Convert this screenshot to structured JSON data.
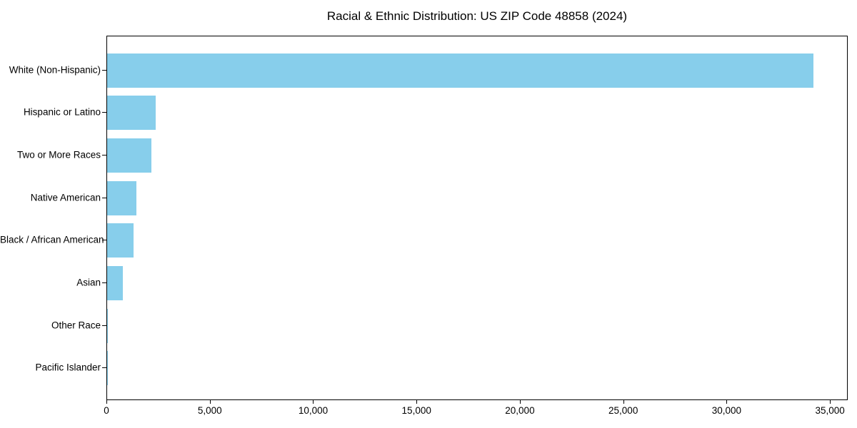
{
  "figure": {
    "background": "#ffffff"
  },
  "chart_data": {
    "type": "bar",
    "orientation": "horizontal",
    "title": "Racial & Ethnic Distribution: US ZIP Code 48858 (2024)",
    "categories": [
      "White (Non-Hispanic)",
      "Hispanic or Latino",
      "Two or More Races",
      "Native American",
      "Black / African American",
      "Asian",
      "Other Race",
      "Pacific Islander"
    ],
    "values": [
      34150,
      2340,
      2130,
      1420,
      1280,
      750,
      50,
      10
    ],
    "xlabel": "",
    "ylabel": "",
    "xlim": [
      0,
      35858
    ],
    "xticks": {
      "values": [
        0,
        5000,
        10000,
        15000,
        20000,
        25000,
        30000,
        35000
      ],
      "labels": [
        "0",
        "5,000",
        "10,000",
        "15,000",
        "20,000",
        "25,000",
        "30,000",
        "35,000"
      ]
    },
    "bar_color": "#87CEEB",
    "axis_color": "#000000",
    "text_color": "#000000",
    "grid": false,
    "legend": "none"
  }
}
